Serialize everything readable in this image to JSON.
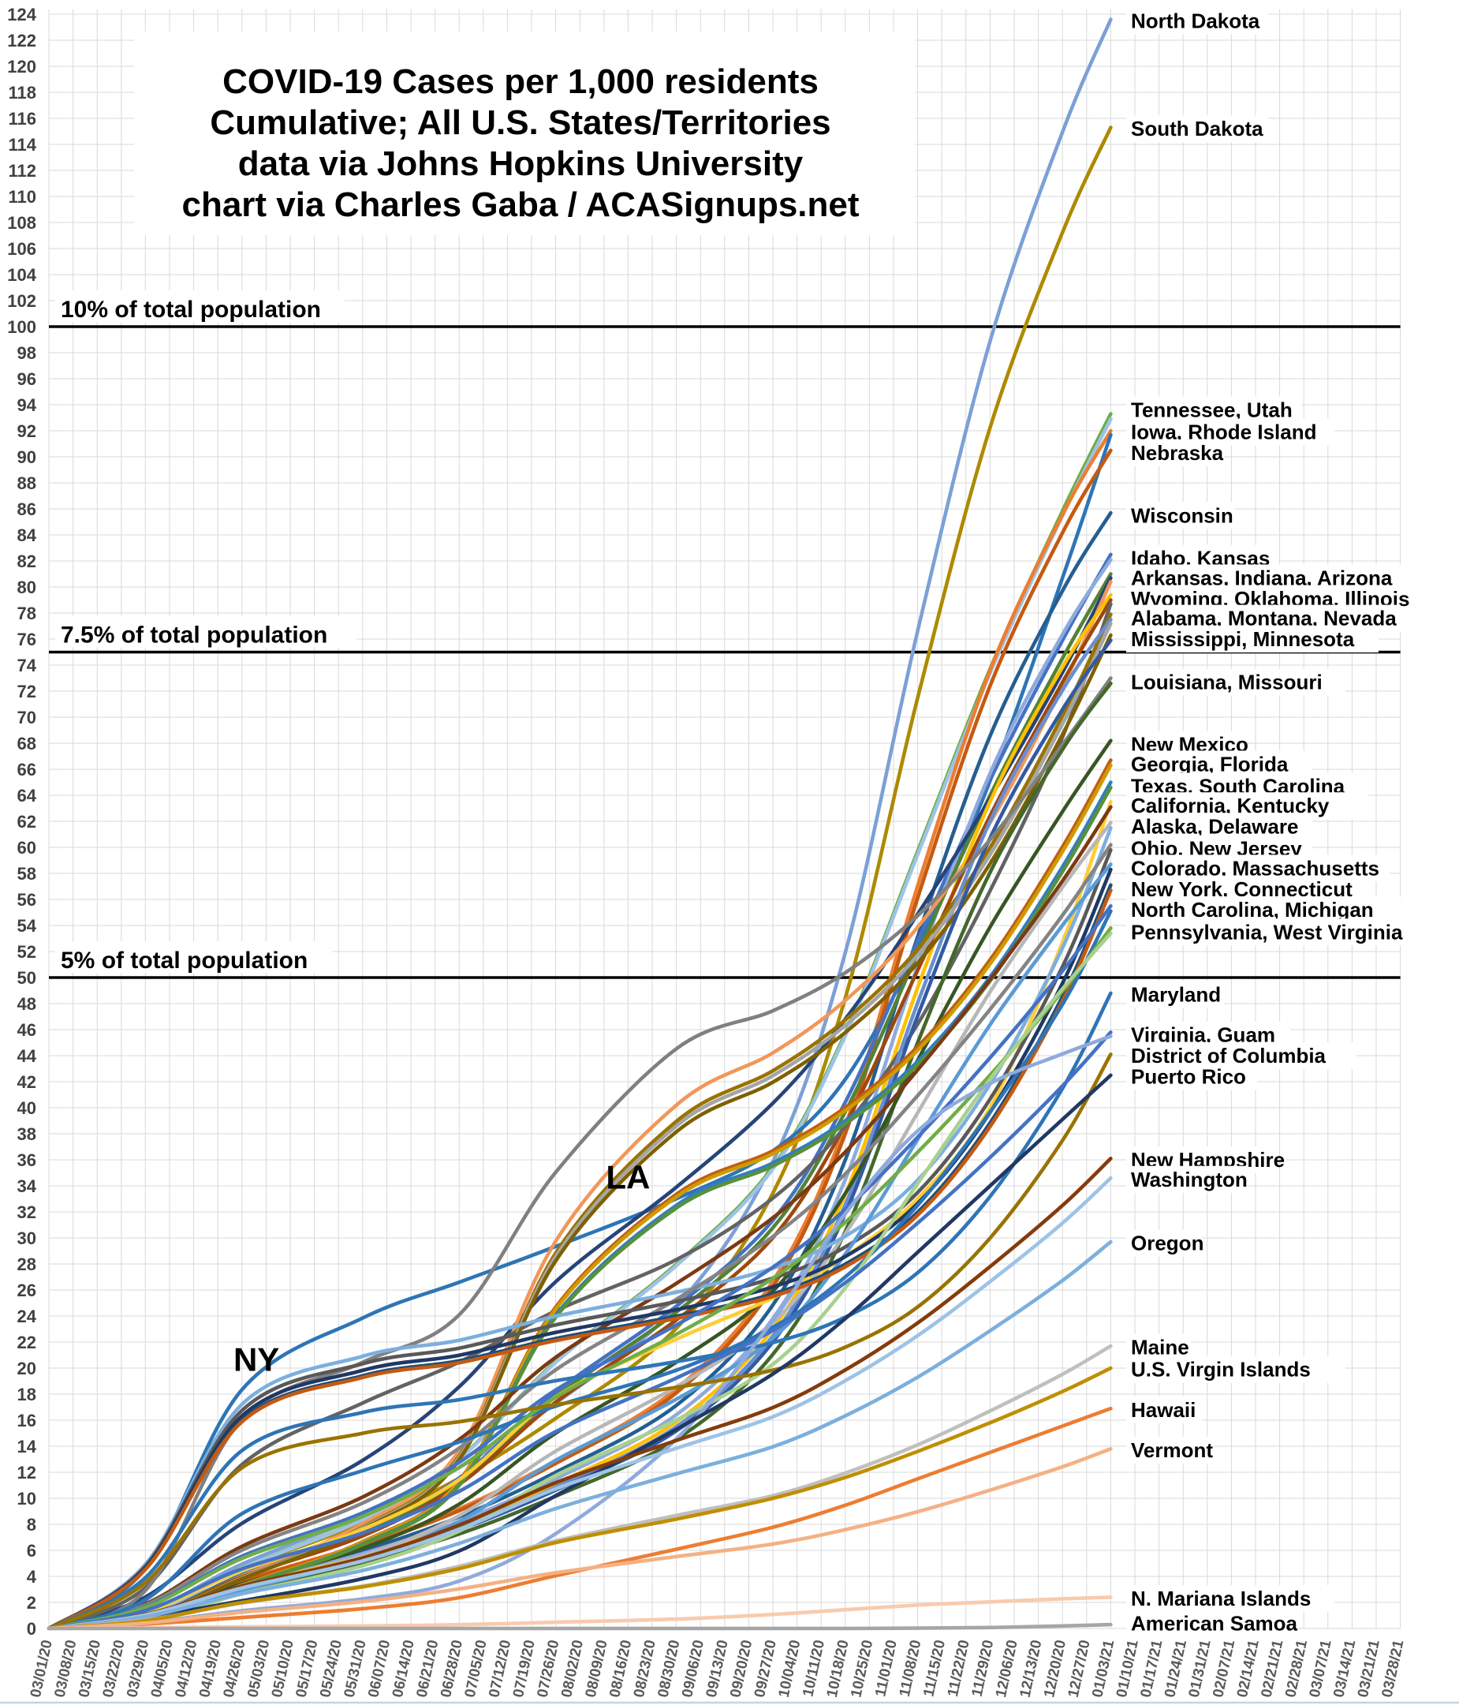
{
  "chart_data": {
    "type": "line",
    "title_lines": [
      "COVID-19 Cases per 1,000 residents",
      "Cumulative; All U.S. States/Territories",
      "data via Johns Hopkins University",
      "chart via Charles Gaba / ACASignups.net"
    ],
    "y_axis": {
      "min": 0,
      "max": 124,
      "tick_step": 2,
      "grid": true
    },
    "x_tick_labels": [
      "03/01/20",
      "03/08/20",
      "03/15/20",
      "03/22/20",
      "03/29/20",
      "04/05/20",
      "04/12/20",
      "04/19/20",
      "04/26/20",
      "05/03/20",
      "05/10/20",
      "05/17/20",
      "05/24/20",
      "05/31/20",
      "06/07/20",
      "06/14/20",
      "06/21/20",
      "06/28/20",
      "07/05/20",
      "07/12/20",
      "07/19/20",
      "07/26/20",
      "08/02/20",
      "08/09/20",
      "08/16/20",
      "08/23/20",
      "08/30/20",
      "09/06/20",
      "09/13/20",
      "09/20/20",
      "09/27/20",
      "10/04/20",
      "10/11/20",
      "10/18/20",
      "10/25/20",
      "11/01/20",
      "11/08/20",
      "11/15/20",
      "11/22/20",
      "11/29/20",
      "12/06/20",
      "12/13/20",
      "12/20/20",
      "12/27/20",
      "01/03/21",
      "01/10/21",
      "01/17/21",
      "01/24/21",
      "01/31/21",
      "02/07/21",
      "02/14/21",
      "02/21/21",
      "02/28/21",
      "03/07/21",
      "03/14/21",
      "03/21/21",
      "03/28/21"
    ],
    "reference_lines": [
      {
        "value": 100,
        "label": "10% of total population"
      },
      {
        "value": 75,
        "label": "7.5% of total population"
      },
      {
        "value": 50,
        "label": "5% of total population"
      }
    ],
    "annotations": [
      {
        "text": "NY",
        "week": 8.6,
        "value": 19.8
      },
      {
        "text": "LA",
        "week": 24.0,
        "value": 33.8
      }
    ],
    "right_labels": [
      {
        "text": "North Dakota",
        "value": 123.5
      },
      {
        "text": "South Dakota",
        "value": 115.2
      },
      {
        "text": "Tennessee, Utah",
        "value": 93.6
      },
      {
        "text": "Iowa, Rhode Island",
        "value": 91.9
      },
      {
        "text": "Nebraska",
        "value": 90.3
      },
      {
        "text": "Wisconsin",
        "value": 85.5
      },
      {
        "text": "Idaho, Kansas",
        "value": 82.2
      },
      {
        "text": "Arkansas, Indiana, Arizona",
        "value": 80.7
      },
      {
        "text": "Wyoming, Oklahoma, Illinois",
        "value": 79.1
      },
      {
        "text": "Alabama, Montana, Nevada",
        "value": 77.6
      },
      {
        "text": "Mississippi, Minnesota",
        "value": 76.0
      },
      {
        "text": "Louisiana, Missouri",
        "value": 72.7
      },
      {
        "text": "New Mexico",
        "value": 67.9
      },
      {
        "text": "Georgia, Florida",
        "value": 66.4
      },
      {
        "text": "Texas, South Carolina",
        "value": 64.7
      },
      {
        "text": "California, Kentucky",
        "value": 63.2
      },
      {
        "text": "Alaska, Delaware",
        "value": 61.6
      },
      {
        "text": "Ohio, New Jersey",
        "value": 59.9
      },
      {
        "text": "Colorado, Massachusetts",
        "value": 58.4
      },
      {
        "text": "New York, Connecticut",
        "value": 56.8
      },
      {
        "text": "North Carolina, Michigan",
        "value": 55.2
      },
      {
        "text": "Pennsylvania, West Virginia",
        "value": 53.5
      },
      {
        "text": "Maryland",
        "value": 48.7
      },
      {
        "text": "Virginia, Guam",
        "value": 45.6
      },
      {
        "text": "District of Columbia",
        "value": 44.0
      },
      {
        "text": "Puerto Rico",
        "value": 42.4
      },
      {
        "text": "New Hampshire",
        "value": 36.0
      },
      {
        "text": "Washington",
        "value": 34.5
      },
      {
        "text": "Oregon",
        "value": 29.6
      },
      {
        "text": "Maine",
        "value": 21.6
      },
      {
        "text": "U.S. Virgin Islands",
        "value": 19.9
      },
      {
        "text": "Hawaii",
        "value": 16.8
      },
      {
        "text": "Vermont",
        "value": 13.7
      },
      {
        "text": "N. Mariana Islands",
        "value": 2.3
      },
      {
        "text": "American Samoa",
        "value": 0.4
      }
    ],
    "checkpoint_weeks": [
      0,
      4,
      8,
      13,
      17,
      21,
      26,
      30,
      33,
      36,
      39,
      42,
      44
    ],
    "profiles": {
      "early_ne": [
        0,
        0.08,
        0.28,
        0.34,
        0.36,
        0.39,
        0.42,
        0.45,
        0.49,
        0.56,
        0.68,
        0.85,
        1
      ],
      "ri": [
        0,
        0.05,
        0.2,
        0.26,
        0.29,
        0.32,
        0.36,
        0.4,
        0.46,
        0.57,
        0.71,
        0.88,
        1
      ],
      "early_mid": [
        0,
        0.04,
        0.16,
        0.22,
        0.26,
        0.31,
        0.36,
        0.42,
        0.49,
        0.59,
        0.72,
        0.87,
        1
      ],
      "la_summer": [
        0,
        0.04,
        0.22,
        0.28,
        0.33,
        0.48,
        0.61,
        0.65,
        0.69,
        0.75,
        0.83,
        0.93,
        1
      ],
      "sunbelt": [
        0,
        0.01,
        0.05,
        0.1,
        0.17,
        0.37,
        0.5,
        0.55,
        0.6,
        0.67,
        0.77,
        0.9,
        1
      ],
      "midwest": [
        0,
        0.01,
        0.04,
        0.07,
        0.1,
        0.14,
        0.2,
        0.29,
        0.42,
        0.62,
        0.8,
        0.93,
        1
      ],
      "mountain": [
        0,
        0.01,
        0.05,
        0.09,
        0.14,
        0.22,
        0.3,
        0.38,
        0.49,
        0.64,
        0.79,
        0.92,
        1
      ],
      "steady": [
        0,
        0.03,
        0.1,
        0.16,
        0.23,
        0.33,
        0.42,
        0.5,
        0.58,
        0.68,
        0.79,
        0.91,
        1
      ],
      "california": [
        0,
        0.02,
        0.07,
        0.12,
        0.18,
        0.28,
        0.35,
        0.4,
        0.45,
        0.52,
        0.63,
        0.83,
        1
      ],
      "low_slow": [
        0,
        0.03,
        0.09,
        0.15,
        0.22,
        0.31,
        0.4,
        0.47,
        0.55,
        0.65,
        0.77,
        0.9,
        1
      ],
      "guam": [
        0,
        0.01,
        0.03,
        0.05,
        0.08,
        0.16,
        0.32,
        0.52,
        0.7,
        0.84,
        0.92,
        0.97,
        1
      ],
      "pr": [
        0,
        0.02,
        0.05,
        0.09,
        0.14,
        0.24,
        0.36,
        0.46,
        0.56,
        0.68,
        0.8,
        0.92,
        1
      ],
      "tiny": [
        0,
        0.02,
        0.05,
        0.08,
        0.12,
        0.2,
        0.3,
        0.45,
        0.6,
        0.75,
        0.85,
        0.95,
        1
      ],
      "amsamoa": [
        0,
        0,
        0,
        0,
        0,
        0,
        0,
        0,
        0,
        0.08,
        0.25,
        0.65,
        1
      ]
    },
    "series": [
      {
        "name": "North Dakota",
        "final": 123.6,
        "profile": "midwest",
        "color": "#7CA0D6"
      },
      {
        "name": "South Dakota",
        "final": 115.3,
        "profile": "midwest",
        "color": "#AD8A00"
      },
      {
        "name": "Tennessee",
        "final": 93.3,
        "profile": "mountain",
        "color": "#70AD47"
      },
      {
        "name": "Utah",
        "final": 92.9,
        "profile": "mountain",
        "color": "#9DC3E6"
      },
      {
        "name": "Iowa",
        "final": 92.0,
        "profile": "midwest",
        "color": "#ED7D31"
      },
      {
        "name": "Rhode Island",
        "final": 91.7,
        "profile": "ri",
        "color": "#2E75B6"
      },
      {
        "name": "Nebraska",
        "final": 90.5,
        "profile": "midwest",
        "color": "#C55A11"
      },
      {
        "name": "Wisconsin",
        "final": 85.7,
        "profile": "midwest",
        "color": "#255E91"
      },
      {
        "name": "Idaho",
        "final": 82.5,
        "profile": "mountain",
        "color": "#4472C4"
      },
      {
        "name": "Kansas",
        "final": 82.1,
        "profile": "midwest",
        "color": "#8FAADC"
      },
      {
        "name": "Arkansas",
        "final": 81.0,
        "profile": "mountain",
        "color": "#548235"
      },
      {
        "name": "Indiana",
        "final": 80.7,
        "profile": "steady",
        "color": "#264478"
      },
      {
        "name": "Arizona",
        "final": 80.4,
        "profile": "sunbelt",
        "color": "#F1975A"
      },
      {
        "name": "Wyoming",
        "final": 79.4,
        "profile": "midwest",
        "color": "#FFC000"
      },
      {
        "name": "Oklahoma",
        "final": 79.0,
        "profile": "mountain",
        "color": "#9E480E"
      },
      {
        "name": "Illinois",
        "final": 78.7,
        "profile": "early_mid",
        "color": "#636363"
      },
      {
        "name": "Alabama",
        "final": 77.9,
        "profile": "sunbelt",
        "color": "#997300"
      },
      {
        "name": "Montana",
        "final": 77.5,
        "profile": "midwest",
        "color": "#698ED0"
      },
      {
        "name": "Nevada",
        "final": 77.2,
        "profile": "sunbelt",
        "color": "#A5A5A5"
      },
      {
        "name": "Mississippi",
        "final": 76.3,
        "profile": "sunbelt",
        "color": "#7F6000"
      },
      {
        "name": "Minnesota",
        "final": 75.9,
        "profile": "midwest",
        "color": "#335AA1"
      },
      {
        "name": "Louisiana",
        "final": 73.0,
        "profile": "la_summer",
        "color": "#808080"
      },
      {
        "name": "Missouri",
        "final": 72.6,
        "profile": "midwest",
        "color": "#43682B"
      },
      {
        "name": "New Mexico",
        "final": 68.2,
        "profile": "mountain",
        "color": "#375623"
      },
      {
        "name": "Georgia",
        "final": 66.7,
        "profile": "sunbelt",
        "color": "#BE5E14"
      },
      {
        "name": "Florida",
        "final": 66.3,
        "profile": "sunbelt",
        "color": "#CF9B00"
      },
      {
        "name": "Texas",
        "final": 65.0,
        "profile": "sunbelt",
        "color": "#327DC2"
      },
      {
        "name": "South Carolina",
        "final": 64.6,
        "profile": "sunbelt",
        "color": "#58913A"
      },
      {
        "name": "California",
        "final": 63.5,
        "profile": "california",
        "color": "#FFCD33"
      },
      {
        "name": "Kentucky",
        "final": 63.1,
        "profile": "steady",
        "color": "#7C3912"
      },
      {
        "name": "Alaska",
        "final": 61.9,
        "profile": "mountain",
        "color": "#B7B7B7"
      },
      {
        "name": "Delaware",
        "final": 61.5,
        "profile": "early_ne",
        "color": "#7CAFDD"
      },
      {
        "name": "Ohio",
        "final": 60.2,
        "profile": "steady",
        "color": "#848484"
      },
      {
        "name": "New Jersey",
        "final": 59.8,
        "profile": "early_ne",
        "color": "#595959"
      },
      {
        "name": "Colorado",
        "final": 58.7,
        "profile": "mountain",
        "color": "#5B9BD5"
      },
      {
        "name": "Massachusetts",
        "final": 58.3,
        "profile": "early_ne",
        "color": "#203864"
      },
      {
        "name": "New York",
        "final": 57.1,
        "profile": "early_ne",
        "color": "#1F4E79"
      },
      {
        "name": "Connecticut",
        "final": 56.7,
        "profile": "early_ne",
        "color": "#C55A11"
      },
      {
        "name": "North Carolina",
        "final": 55.5,
        "profile": "steady",
        "color": "#4472C4"
      },
      {
        "name": "Michigan",
        "final": 55.1,
        "profile": "early_mid",
        "color": "#2E75B6"
      },
      {
        "name": "Pennsylvania",
        "final": 53.8,
        "profile": "steady",
        "color": "#70AD47"
      },
      {
        "name": "West Virginia",
        "final": 53.4,
        "profile": "mountain",
        "color": "#A9D18E"
      },
      {
        "name": "Maryland",
        "final": 48.8,
        "profile": "early_ne",
        "color": "#2E75B6"
      },
      {
        "name": "Virginia",
        "final": 45.8,
        "profile": "steady",
        "color": "#4472C4"
      },
      {
        "name": "Guam",
        "final": 45.5,
        "profile": "guam",
        "color": "#8FAADC"
      },
      {
        "name": "District of Columbia",
        "final": 44.1,
        "profile": "early_ne",
        "color": "#997300"
      },
      {
        "name": "Puerto Rico",
        "final": 42.5,
        "profile": "pr",
        "color": "#203864"
      },
      {
        "name": "New Hampshire",
        "final": 36.1,
        "profile": "low_slow",
        "color": "#843C0C"
      },
      {
        "name": "Washington",
        "final": 34.6,
        "profile": "low_slow",
        "color": "#9DC3E6"
      },
      {
        "name": "Oregon",
        "final": 29.7,
        "profile": "low_slow",
        "color": "#7CAFDD"
      },
      {
        "name": "Maine",
        "final": 21.7,
        "profile": "low_slow",
        "color": "#BFBFBF"
      },
      {
        "name": "U.S. Virgin Islands",
        "final": 20.0,
        "profile": "steady",
        "color": "#BF8F00"
      },
      {
        "name": "Hawaii",
        "final": 16.9,
        "profile": "pr",
        "color": "#ED7D31"
      },
      {
        "name": "Vermont",
        "final": 13.8,
        "profile": "low_slow",
        "color": "#F4B183"
      },
      {
        "name": "N. Mariana Islands",
        "final": 2.4,
        "profile": "tiny",
        "color": "#F8CBAD"
      },
      {
        "name": "American Samoa",
        "final": 0.3,
        "profile": "amsamoa",
        "color": "#A6A6A6"
      }
    ]
  },
  "colors": {
    "background": "#FFFFFF",
    "grid": "#D9D9D9",
    "y_tick_label": "#404040",
    "x_tick_label": "#595959",
    "reference_line": "#000000",
    "title_text": "#000000",
    "label_text": "#000000",
    "bottom_strip": "#BDD7EE"
  }
}
